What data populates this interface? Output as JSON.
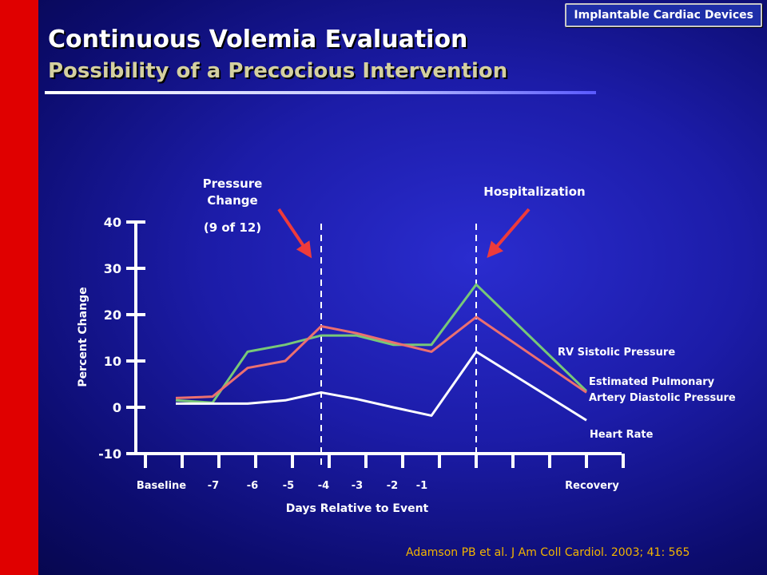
{
  "badge": "Implantable Cardiac Devices",
  "title": "Continuous Volemia Evaluation",
  "subtitle": "Possibility of a Precocious Intervention",
  "citation": "Adamson PB et al. J Am Coll Cardiol. 2003; 41: 565",
  "chart_data": {
    "type": "line",
    "xlabel": "Days Relative to Event",
    "ylabel": "Percent Change",
    "ylim": [
      -10,
      40
    ],
    "yticks": [
      40,
      30,
      20,
      10,
      0,
      -10
    ],
    "x_tick_labels": [
      "Baseline",
      "-7",
      "-6",
      "-5",
      "-4",
      "-3",
      "-2",
      "-1",
      "Recovery"
    ],
    "series": [
      {
        "name": "RV Sistolic Pressure",
        "color": "#78c878",
        "points": [
          [
            -8,
            1.5
          ],
          [
            -7,
            1
          ],
          [
            -6,
            12
          ],
          [
            -5,
            13.5
          ],
          [
            -4,
            15.5
          ],
          [
            -3,
            15.5
          ],
          [
            -2,
            13.5
          ],
          [
            -1,
            13.5
          ],
          [
            0,
            26.5
          ],
          [
            3,
            3.5
          ]
        ]
      },
      {
        "name": "Estimated Pulmonary Artery Diastolic Pressure",
        "color": "#ec7070",
        "points": [
          [
            -8,
            2
          ],
          [
            -7,
            2.3
          ],
          [
            -6,
            8.5
          ],
          [
            -5,
            10
          ],
          [
            -4,
            17.5
          ],
          [
            -3,
            16
          ],
          [
            -2,
            14
          ],
          [
            -1,
            12
          ],
          [
            0,
            19.5
          ],
          [
            3,
            3.2
          ]
        ]
      },
      {
        "name": "Heart Rate",
        "color": "#ffffff",
        "points": [
          [
            -8,
            0.8
          ],
          [
            -7,
            0.8
          ],
          [
            -6,
            0.8
          ],
          [
            -5,
            1.5
          ],
          [
            -4,
            3.2
          ],
          [
            -3,
            1.8
          ],
          [
            -2,
            0
          ],
          [
            -1,
            -1.8
          ],
          [
            0,
            12
          ],
          [
            3,
            -2.8
          ]
        ]
      }
    ],
    "series_labels": {
      "rv": "RV Sistolic Pressure",
      "pad_line1": "Estimated Pulmonary",
      "pad_line2": "Artery Diastolic Pressure",
      "hr": "Heart Rate"
    },
    "annotations": {
      "pressure_line1": "Pressure",
      "pressure_line2": "Change",
      "pressure_line3": "(9 of 12)",
      "pressure_x": -4,
      "hospitalization": "Hospitalization",
      "hospitalization_x": 0
    }
  }
}
